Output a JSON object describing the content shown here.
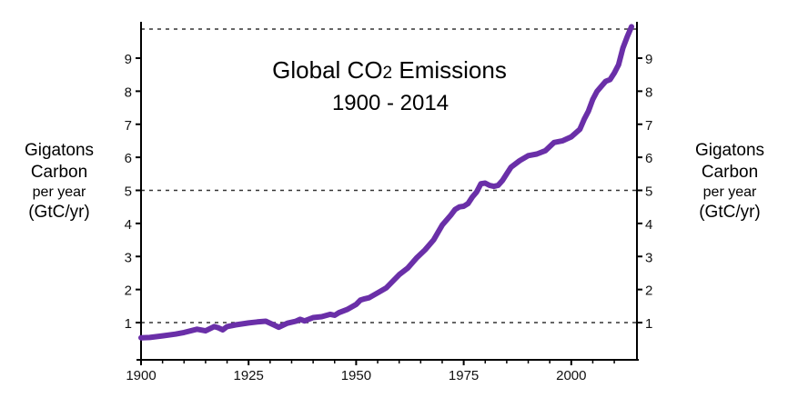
{
  "chart_data": {
    "type": "line",
    "title": "Global CO2 Emissions",
    "title_prefix": "Global CO",
    "title_subscript": "2",
    "title_suffix": " Emissions",
    "subtitle": "1900 - 2014",
    "ylabel_left": {
      "line1": "Gigatons",
      "line2": "Carbon",
      "line3": "per year",
      "line4": "(GtC/yr)"
    },
    "ylabel_right": {
      "line1": "Gigatons",
      "line2": "Carbon",
      "line3": "per year",
      "line4": "(GtC/yr)"
    },
    "xlim": [
      1900,
      2014
    ],
    "ylim": [
      0,
      10
    ],
    "x_ticks": [
      1900,
      1925,
      1950,
      1975,
      2000
    ],
    "y_ticks": [
      1,
      2,
      3,
      4,
      5,
      6,
      7,
      8,
      9
    ],
    "reference_lines": [
      1,
      5,
      9.8
    ],
    "series": [
      {
        "name": "Global CO2 emissions",
        "color": "#6a2fa8",
        "x": [
          1900,
          1902,
          1905,
          1908,
          1910,
          1913,
          1915,
          1917,
          1918,
          1919,
          1920,
          1922,
          1925,
          1927,
          1929,
          1930,
          1931,
          1932,
          1934,
          1936,
          1937,
          1938,
          1940,
          1942,
          1944,
          1945,
          1946,
          1948,
          1950,
          1951,
          1952,
          1953,
          1955,
          1957,
          1960,
          1962,
          1964,
          1966,
          1968,
          1970,
          1972,
          1973,
          1974,
          1975,
          1976,
          1977,
          1978,
          1979,
          1980,
          1981,
          1982,
          1983,
          1984,
          1985,
          1986,
          1988,
          1990,
          1992,
          1994,
          1996,
          1998,
          2000,
          2002,
          2003,
          2004,
          2005,
          2006,
          2007,
          2008,
          2009,
          2010,
          2011,
          2012,
          2013,
          2014
        ],
        "values": [
          0.54,
          0.55,
          0.6,
          0.65,
          0.7,
          0.8,
          0.75,
          0.88,
          0.84,
          0.78,
          0.88,
          0.93,
          0.99,
          1.02,
          1.04,
          0.98,
          0.92,
          0.86,
          0.98,
          1.04,
          1.1,
          1.05,
          1.15,
          1.18,
          1.25,
          1.22,
          1.3,
          1.4,
          1.55,
          1.68,
          1.72,
          1.75,
          1.9,
          2.05,
          2.45,
          2.65,
          2.95,
          3.2,
          3.5,
          3.95,
          4.25,
          4.42,
          4.5,
          4.52,
          4.6,
          4.8,
          4.95,
          5.2,
          5.22,
          5.15,
          5.12,
          5.15,
          5.3,
          5.5,
          5.7,
          5.9,
          6.05,
          6.1,
          6.2,
          6.45,
          6.5,
          6.62,
          6.85,
          7.15,
          7.4,
          7.75,
          8.0,
          8.15,
          8.3,
          8.35,
          8.55,
          8.8,
          9.3,
          9.65,
          9.95
        ]
      }
    ]
  }
}
